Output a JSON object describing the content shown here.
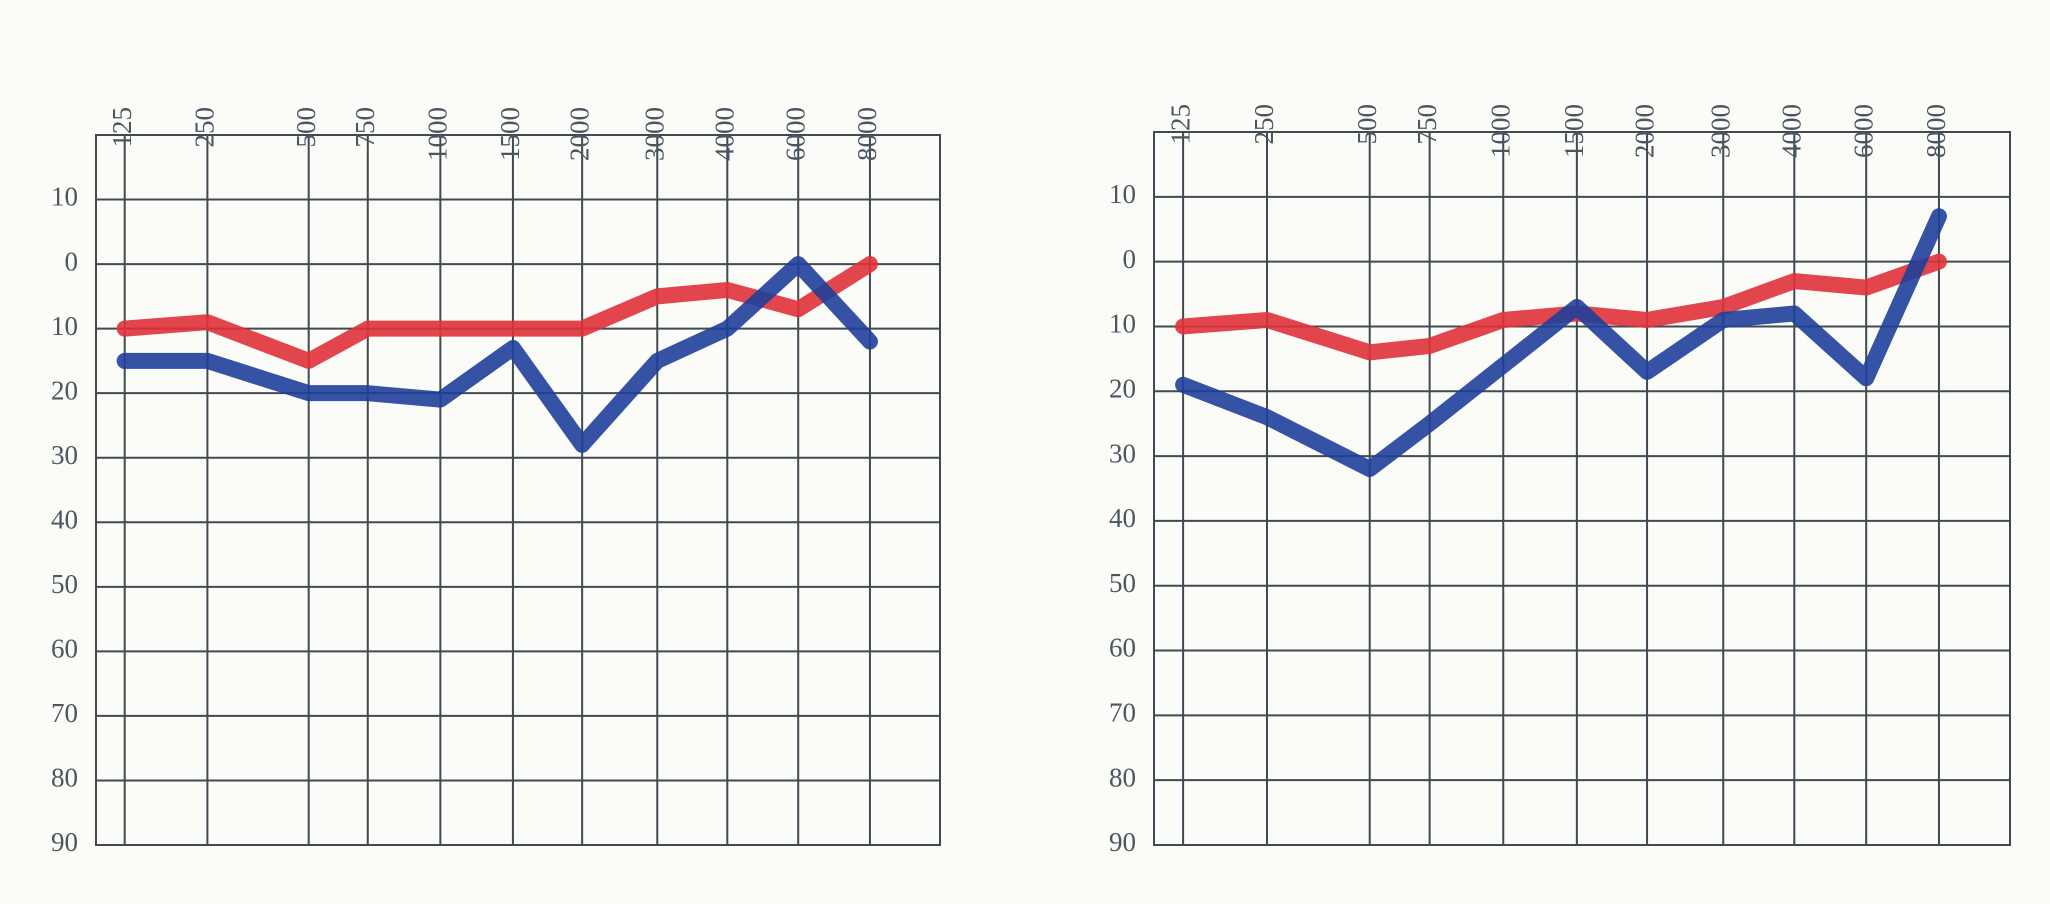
{
  "chart_data": [
    {
      "type": "line",
      "categories": [
        "125",
        "250",
        "500",
        "750",
        "1000",
        "1500",
        "2000",
        "3000",
        "4000",
        "6000",
        "8000"
      ],
      "series": [
        {
          "color": "#e0313a",
          "values": [
            10,
            9,
            15,
            10,
            10,
            10,
            10,
            5,
            4,
            7,
            0
          ]
        },
        {
          "color": "#1f3f9a",
          "values": [
            15,
            15,
            20,
            20,
            21,
            13,
            28,
            15,
            10,
            0,
            12
          ]
        }
      ],
      "ylim": [
        -20,
        90
      ],
      "y_inverted": true,
      "yticks": [
        {
          "value": -10,
          "label": "10"
        },
        0,
        10,
        20,
        30,
        40,
        50,
        60,
        70,
        80,
        90
      ],
      "grid": true
    },
    {
      "type": "line",
      "categories": [
        "125",
        "250",
        "500",
        "750",
        "1000",
        "1500",
        "2000",
        "3000",
        "4000",
        "6000",
        "8000"
      ],
      "series": [
        {
          "color": "#e0313a",
          "values": [
            10,
            9,
            14,
            13,
            9,
            8,
            9,
            7,
            3,
            4,
            0
          ]
        },
        {
          "color": "#1f3f9a",
          "values": [
            19,
            24,
            32,
            25,
            16,
            7,
            17,
            9,
            8,
            18,
            -7
          ]
        }
      ],
      "ylim": [
        -20,
        90
      ],
      "y_inverted": true,
      "yticks": [
        {
          "value": -10,
          "label": "10"
        },
        0,
        10,
        20,
        30,
        40,
        50,
        60,
        70,
        80,
        90
      ],
      "grid": true
    }
  ]
}
